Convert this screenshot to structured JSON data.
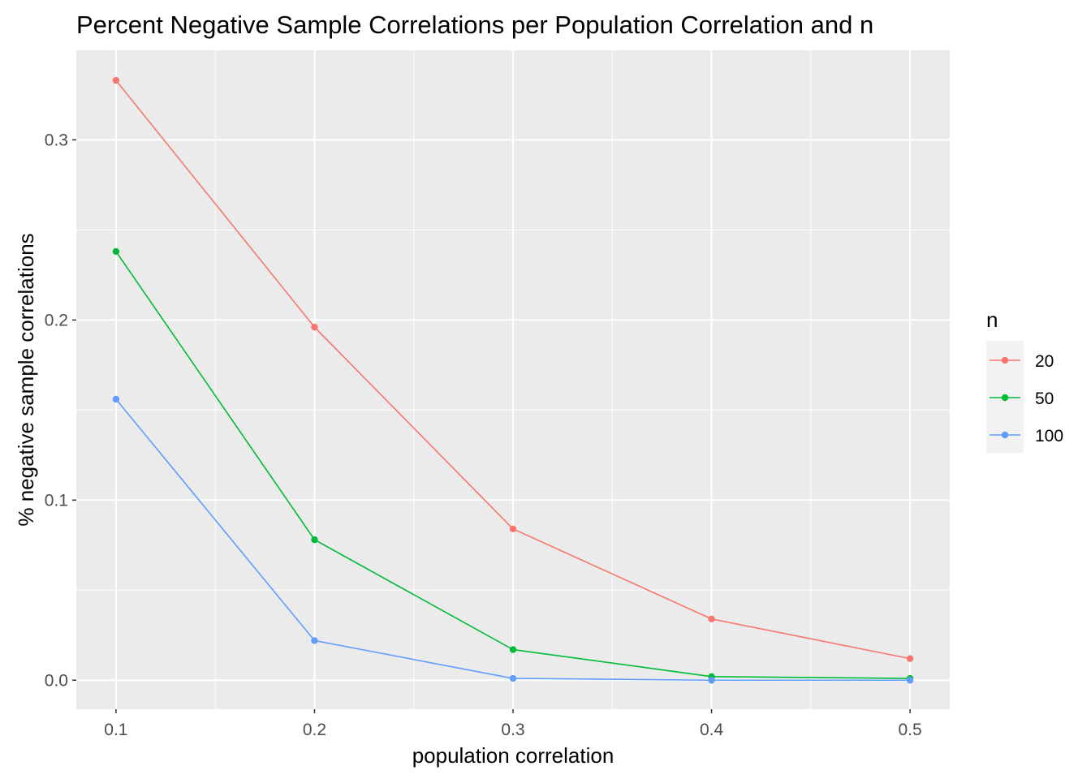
{
  "chart_data": {
    "type": "line",
    "title": "Percent Negative Sample Correlations per Population Correlation and n",
    "xlabel": "population correlation",
    "ylabel": "% negative sample correlations",
    "x": [
      0.1,
      0.2,
      0.3,
      0.4,
      0.5
    ],
    "x_tick_labels": [
      "0.1",
      "0.2",
      "0.3",
      "0.4",
      "0.5"
    ],
    "y_tick_labels": [
      "0.0",
      "0.1",
      "0.2",
      "0.3"
    ],
    "y_ticks": [
      0.0,
      0.1,
      0.2,
      0.3
    ],
    "xlim": [
      0.08,
      0.52
    ],
    "ylim": [
      -0.0161,
      0.3497
    ],
    "grid": true,
    "legend_position": "right",
    "legend_title": "n",
    "series": [
      {
        "name": "20",
        "color": "#F8766D",
        "values": [
          0.333,
          0.196,
          0.084,
          0.034,
          0.012
        ]
      },
      {
        "name": "50",
        "color": "#00BA38",
        "values": [
          0.238,
          0.078,
          0.017,
          0.002,
          0.001
        ]
      },
      {
        "name": "100",
        "color": "#619CFF",
        "values": [
          0.156,
          0.022,
          0.001,
          0.0,
          0.0
        ]
      }
    ]
  }
}
